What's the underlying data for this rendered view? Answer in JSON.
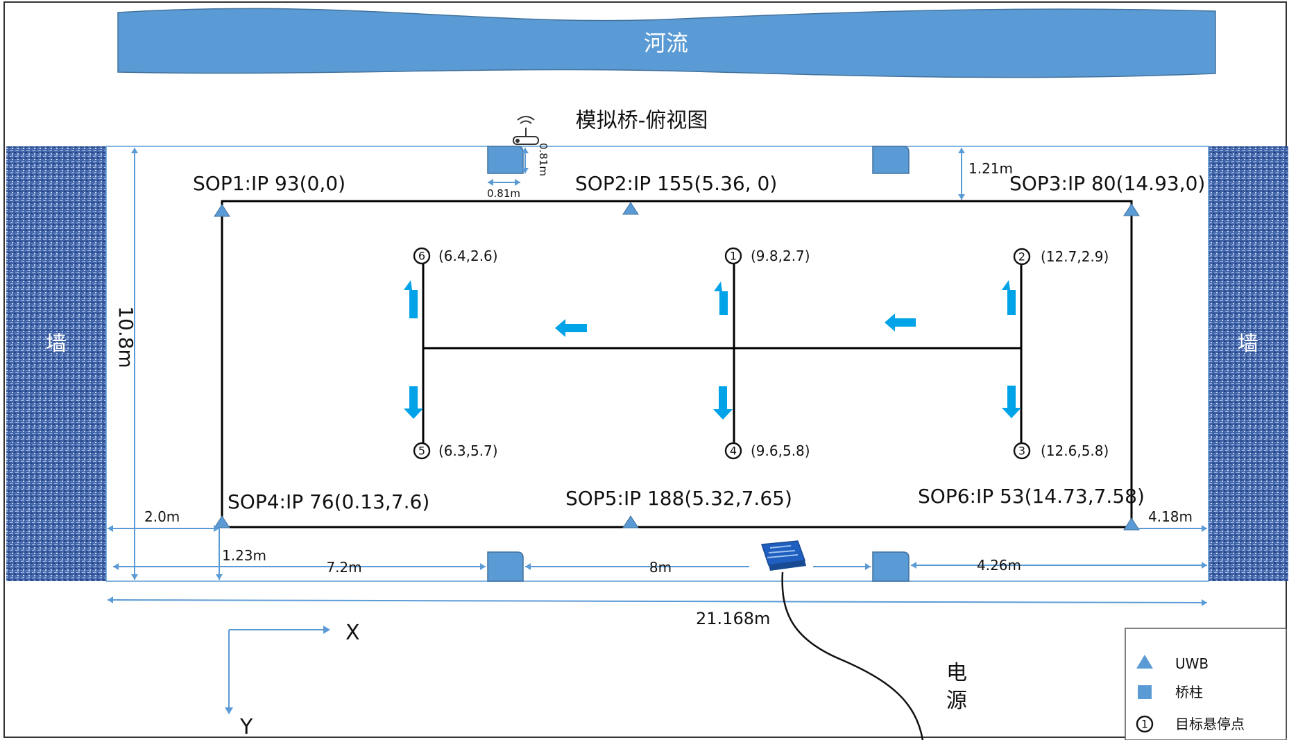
{
  "river_label": "河流",
  "title": "模拟桥-俯视图",
  "wall_label": "墙",
  "sops": [
    {
      "label": "SOP1:IP 93(0,0)"
    },
    {
      "label": "SOP2:IP 155(5.36, 0)"
    },
    {
      "label": "SOP3:IP 80(14.93,0)"
    },
    {
      "label": "SOP4:IP 76(0.13,7.6)"
    },
    {
      "label": "SOP5:IP 188(5.32,7.65)"
    },
    {
      "label": "SOP6:IP 53(14.73,7.58)"
    }
  ],
  "hover_points": [
    {
      "num": "1",
      "label": "(9.8,2.7)"
    },
    {
      "num": "2",
      "label": "(12.7,2.9)"
    },
    {
      "num": "3",
      "label": "(12.6,5.8)"
    },
    {
      "num": "4",
      "label": "(9.6,5.8)"
    },
    {
      "num": "5",
      "label": "(6.3,5.7)"
    },
    {
      "num": "6",
      "label": "(6.4,2.6)"
    }
  ],
  "dimensions": {
    "pillar_w": "0.81m",
    "pillar_h": "0.81m",
    "top_gap": "1.21m",
    "height": "10.8m",
    "left_gap": "2.0m",
    "bottom_gap": "1.23m",
    "seg1": "7.2m",
    "seg2": "8m",
    "seg3": "4.26m",
    "right_gap": "4.18m",
    "total_width": "21.168m"
  },
  "axes": {
    "x": "X",
    "y": "Y"
  },
  "power_label": [
    "电",
    "源"
  ],
  "legend": [
    {
      "icon": "uwb-triangle-icon",
      "label": "UWB"
    },
    {
      "icon": "pillar-square-icon",
      "label": "桥柱"
    },
    {
      "icon": "hover-circle-icon",
      "num": "1",
      "label": "目标悬停点"
    }
  ],
  "colors": {
    "river": "#5b9bd5",
    "pillar": "#5b9bd5",
    "uwb": "#5b9bd5",
    "wall": "#2f4d8f",
    "arrow": "#00a2e8"
  }
}
